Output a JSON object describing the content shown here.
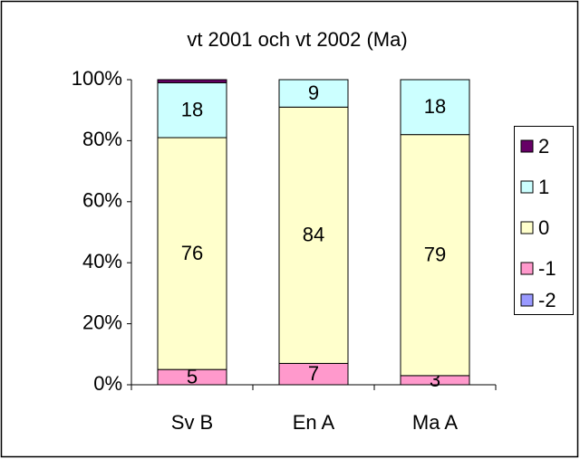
{
  "chart_data": {
    "type": "stacked_bar",
    "title": "vt 2001 och vt 2002 (Ma)",
    "categories": [
      "Sv B",
      "En A",
      "Ma A"
    ],
    "series": [
      {
        "name": "2",
        "color": "#660066",
        "values": [
          1,
          0,
          0
        ],
        "value_labels": [
          null,
          null,
          null
        ]
      },
      {
        "name": "1",
        "color": "#ccffff",
        "values": [
          18,
          9,
          18
        ],
        "value_labels": [
          "18",
          "9",
          "18"
        ]
      },
      {
        "name": "0",
        "color": "#ffffcc",
        "values": [
          76,
          84,
          79
        ],
        "value_labels": [
          "76",
          "84",
          "79"
        ]
      },
      {
        "name": "-1",
        "color": "#ff99cc",
        "values": [
          5,
          7,
          3
        ],
        "value_labels": [
          "5",
          "7",
          "3"
        ]
      },
      {
        "name": "-2",
        "color": "#9999ff",
        "values": [
          0,
          0,
          0
        ],
        "value_labels": [
          null,
          null,
          null
        ]
      }
    ],
    "ylim": [
      0,
      100
    ],
    "yticks": [
      {
        "value": 0,
        "label": "0%"
      },
      {
        "value": 20,
        "label": "20%"
      },
      {
        "value": 40,
        "label": "40%"
      },
      {
        "value": 60,
        "label": "60%"
      },
      {
        "value": 80,
        "label": "80%"
      },
      {
        "value": 100,
        "label": "100%"
      }
    ],
    "grid": false,
    "legend": "right"
  }
}
